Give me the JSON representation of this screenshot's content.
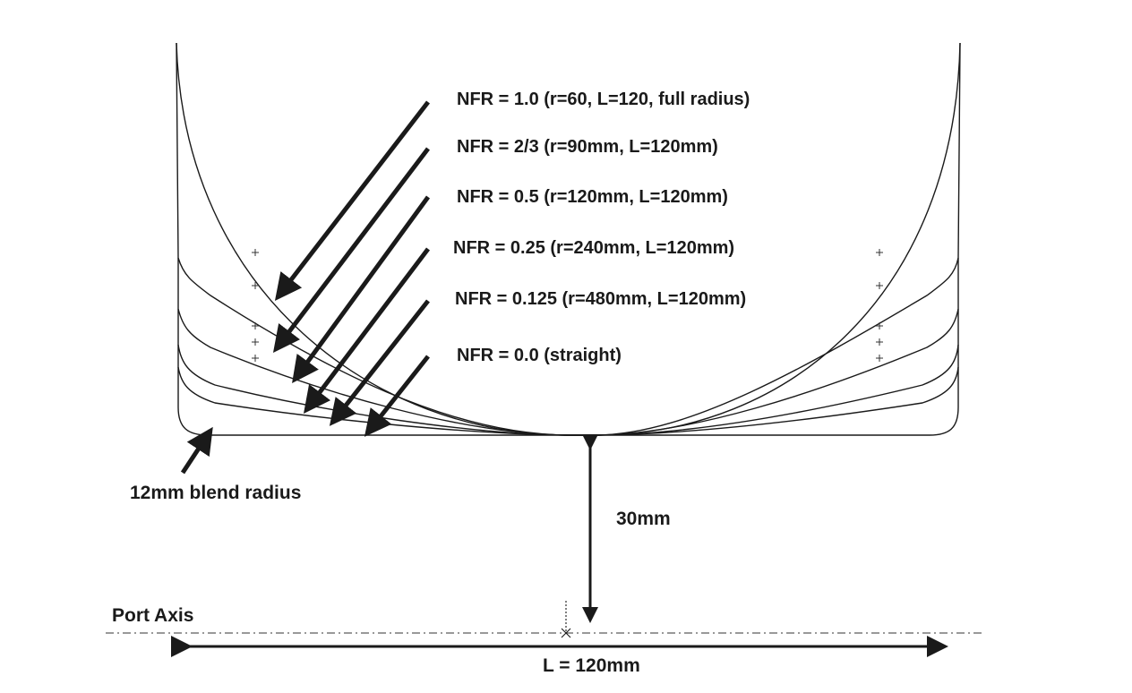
{
  "labels": {
    "nfr": [
      "NFR = 1.0 (r=60, L=120, full radius)",
      "NFR = 2/3  (r=90mm, L=120mm)",
      "NFR = 0.5 (r=120mm, L=120mm)",
      "NFR = 0.25 (r=240mm, L=120mm)",
      "NFR = 0.125 (r=480mm, L=120mm)",
      "NFR = 0.0 (straight)"
    ],
    "blend_radius": "12mm blend radius",
    "height": "30mm",
    "port_axis": "Port Axis",
    "length": "L = 120mm"
  },
  "colors": {
    "ink": "#1a1a1a"
  }
}
